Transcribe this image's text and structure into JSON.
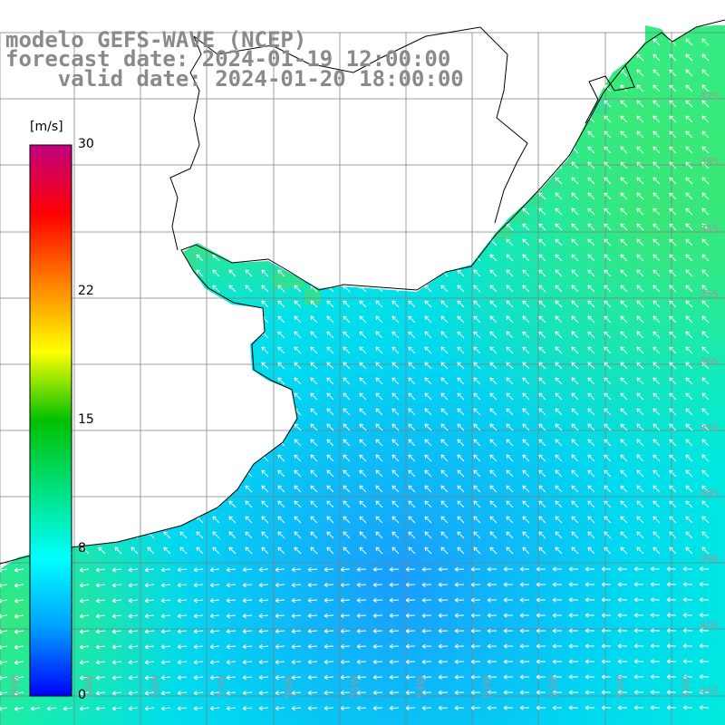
{
  "title": {
    "line1": "modelo GEFS-WAVE (NCEP)",
    "line2": "forecast date: 2024-01-19 12:00:00",
    "line3": "    valid date: 2024-01-20 18:00:00"
  },
  "colorbar": {
    "unit": "[m/s]",
    "ticks": [
      "30",
      "22",
      "15",
      "8",
      "0"
    ],
    "tick_values": [
      30,
      22,
      15,
      8,
      0
    ],
    "range": [
      0,
      30
    ],
    "colors": [
      "#0000ff",
      "#00a0ff",
      "#00ffff",
      "#00e080",
      "#00c000",
      "#ffff00",
      "#ff8000",
      "#ff0000",
      "#c00080"
    ]
  },
  "map": {
    "land_color": "#ffffff",
    "coast_color": "#000000",
    "grid_color": "#7f7f7f",
    "arrow_color": "#ffffff",
    "lat_labels": [
      "32S",
      "33S",
      "34S",
      "35S",
      "36S",
      "37S",
      "38S",
      "39S",
      "40S",
      "41S"
    ],
    "lon_labels": [
      "60W",
      "59W",
      "58W",
      "57W",
      "56W",
      "55W",
      "54W",
      "53W",
      "52W",
      "51W",
      "50W"
    ],
    "wind_field_description_colors": {
      "offshore_strong": "#33ee88",
      "moderate": "#00eeee",
      "weak": "#22aaff"
    }
  }
}
